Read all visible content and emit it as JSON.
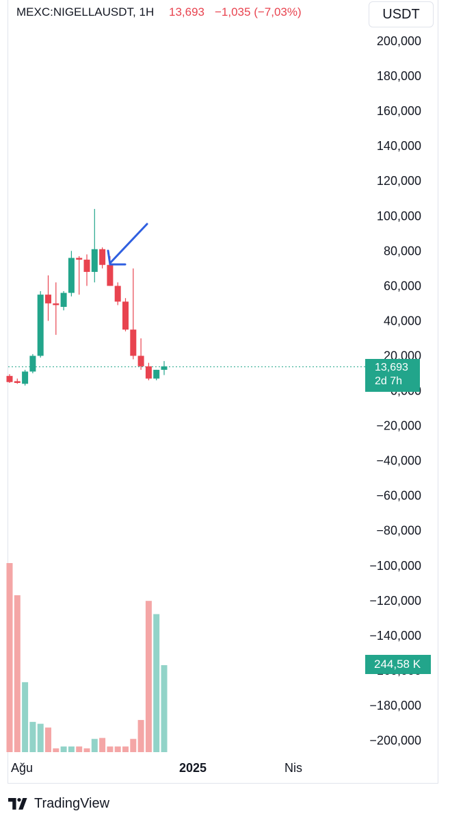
{
  "header": {
    "symbol": "MEXC:NIGELLAUSDT, 1H",
    "last_price": "13,693",
    "change": "−1,035 (−7,03%)",
    "currency_button": "USDT"
  },
  "price_badge": {
    "price": "13,693",
    "countdown": "2d 7h"
  },
  "volume_badge": "244,58 K",
  "x_axis_labels": [
    "Ağu",
    "2025",
    "Nis"
  ],
  "footer": {
    "brand": "TradingView"
  },
  "colors": {
    "up": "#22a58b",
    "down": "#e8434f",
    "vol_up": "#92d3c8",
    "vol_down": "#f4a6a6",
    "arrow": "#2f5fe0",
    "text": "#131722",
    "price_line": "#22a58b"
  },
  "chart_data": {
    "type": "candlestick",
    "y_axis": {
      "ticks": [
        "200,000",
        "180,000",
        "160,000",
        "140,000",
        "120,000",
        "100,000",
        "80,000",
        "60,000",
        "40,000",
        "20,000",
        "0,000",
        "−20,000",
        "−40,000",
        "−60,000",
        "−80,000",
        "−100,000",
        "−120,000",
        "−140,000",
        "−160,000",
        "−180,000",
        "−200,000"
      ],
      "range": [
        -200000,
        200000
      ]
    },
    "last_price": 13693,
    "candles": [
      {
        "o": 8500,
        "h": 9500,
        "l": 4500,
        "c": 5000
      },
      {
        "o": 5500,
        "h": 7000,
        "l": 4000,
        "c": 4500
      },
      {
        "o": 4000,
        "h": 12000,
        "l": 3000,
        "c": 11000
      },
      {
        "o": 11000,
        "h": 21000,
        "l": 10000,
        "c": 20000
      },
      {
        "o": 20000,
        "h": 57000,
        "l": 19000,
        "c": 55000
      },
      {
        "o": 55000,
        "h": 66000,
        "l": 40000,
        "c": 50000
      },
      {
        "o": 50000,
        "h": 62000,
        "l": 32000,
        "c": 49000
      },
      {
        "o": 48000,
        "h": 57000,
        "l": 46000,
        "c": 56000
      },
      {
        "o": 56000,
        "h": 80000,
        "l": 54000,
        "c": 76000
      },
      {
        "o": 76000,
        "h": 77000,
        "l": 55000,
        "c": 75000
      },
      {
        "o": 75000,
        "h": 78000,
        "l": 60000,
        "c": 68000
      },
      {
        "o": 68000,
        "h": 104000,
        "l": 62000,
        "c": 81000
      },
      {
        "o": 81000,
        "h": 82000,
        "l": 70000,
        "c": 72000
      },
      {
        "o": 72000,
        "h": 77000,
        "l": 60000,
        "c": 60000
      },
      {
        "o": 60000,
        "h": 62000,
        "l": 49000,
        "c": 51000
      },
      {
        "o": 51000,
        "h": 53000,
        "l": 34000,
        "c": 35000
      },
      {
        "o": 35000,
        "h": 70000,
        "l": 18000,
        "c": 20000
      },
      {
        "o": 20000,
        "h": 30000,
        "l": 12000,
        "c": 14000
      },
      {
        "o": 14000,
        "h": 16000,
        "l": 6000,
        "c": 7000
      },
      {
        "o": 7000,
        "h": 12000,
        "l": 6000,
        "c": 12000
      },
      {
        "o": 12000,
        "h": 17000,
        "l": 9000,
        "c": 14000
      }
    ],
    "volume": [
      {
        "v": 100,
        "up": false
      },
      {
        "v": 83,
        "up": false
      },
      {
        "v": 37,
        "up": true
      },
      {
        "v": 16,
        "up": true
      },
      {
        "v": 15,
        "up": true
      },
      {
        "v": 13,
        "up": false
      },
      {
        "v": 2,
        "up": false
      },
      {
        "v": 3,
        "up": true
      },
      {
        "v": 3,
        "up": true
      },
      {
        "v": 3,
        "up": false
      },
      {
        "v": 2,
        "up": false
      },
      {
        "v": 7,
        "up": true
      },
      {
        "v": 7.5,
        "up": false
      },
      {
        "v": 3,
        "up": false
      },
      {
        "v": 3,
        "up": false
      },
      {
        "v": 3,
        "up": false
      },
      {
        "v": 7,
        "up": false
      },
      {
        "v": 17,
        "up": false
      },
      {
        "v": 80,
        "up": false
      },
      {
        "v": 73,
        "up": true
      },
      {
        "v": 46,
        "up": true
      }
    ],
    "volume_last": "244,58 K",
    "annotation": "arrow pointing down-left at a red candle near the top",
    "grid": false
  }
}
